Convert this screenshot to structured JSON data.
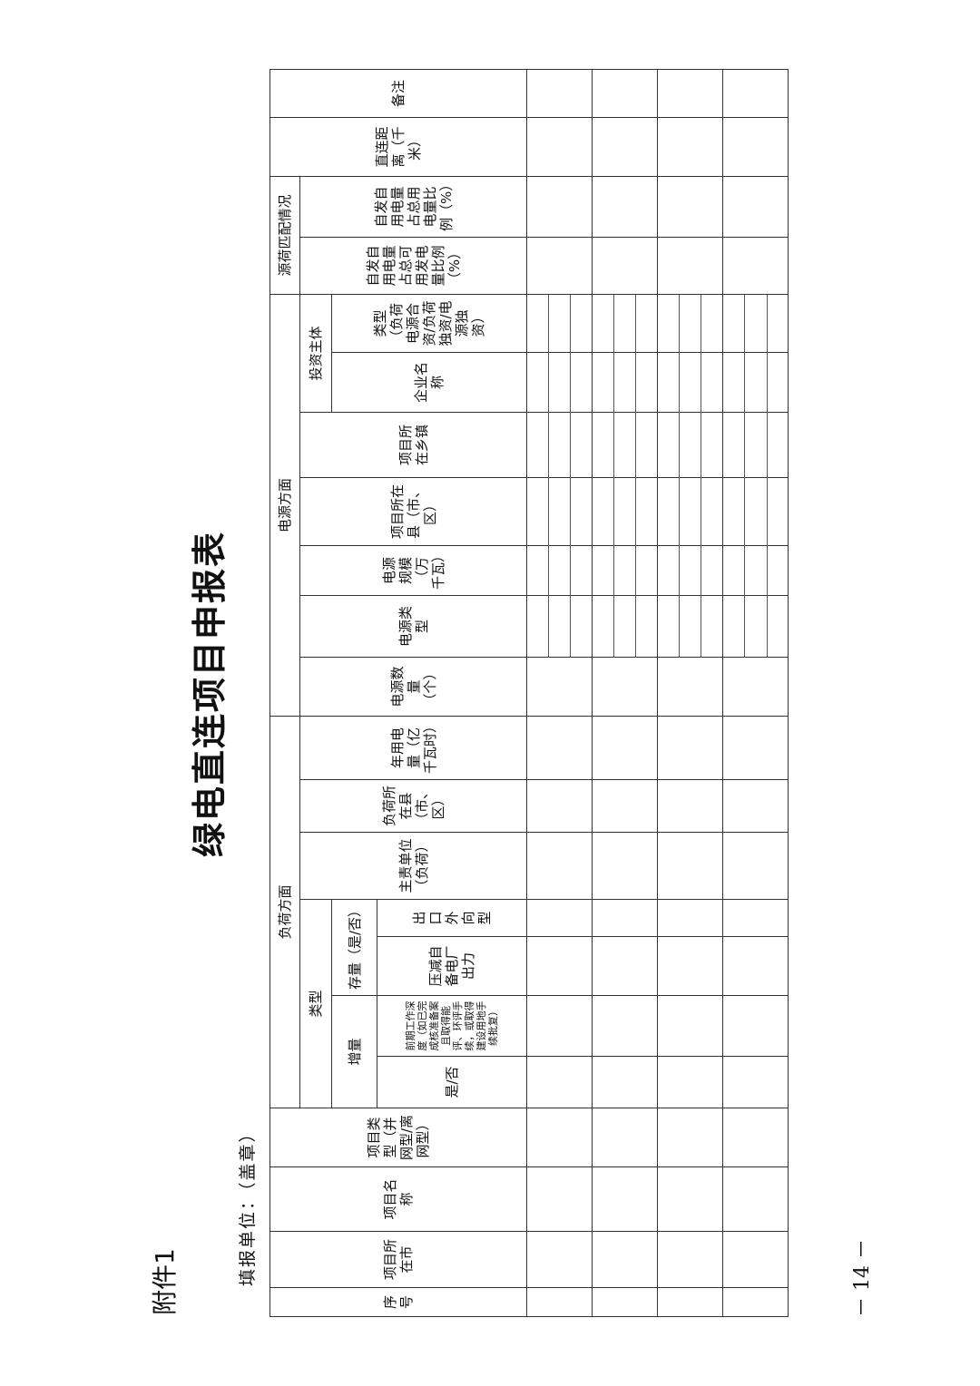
{
  "attachment": "附件1",
  "title": "绿电直连项目申报表",
  "filler": "填报单位：（盖章）",
  "page_number": "－ 14 －",
  "table": {
    "headers": [
      "序号",
      "项目所在市",
      "项目名称",
      "项目类型（并网型/离网型）",
      "负荷方面",
      "类型",
      "增量",
      "存量（是/否）",
      "是/否",
      "前期工作深度（如已完成核准备案且取得能评、环评手续，或取得建设用地手续批复）",
      "压减自备电厂出力",
      "出口外向型",
      "主责单位（负荷）",
      "负荷所在县（市、区）",
      "年用电量（亿千瓦时）",
      "电源方面",
      "电源数量（个）",
      "电源类型",
      "电源规模（万千瓦）",
      "项目所在县（市、区）",
      "项目所在乡镇",
      "投资主体",
      "企业名称",
      "类型（负荷电源合资/负荷独资/电源独资）",
      "源荷匹配情况",
      "自发自用电量占总可用发电量比例（%）",
      "自发自用电量占总用电量比例（%）",
      "直连距离（千米）",
      "备注"
    ]
  }
}
